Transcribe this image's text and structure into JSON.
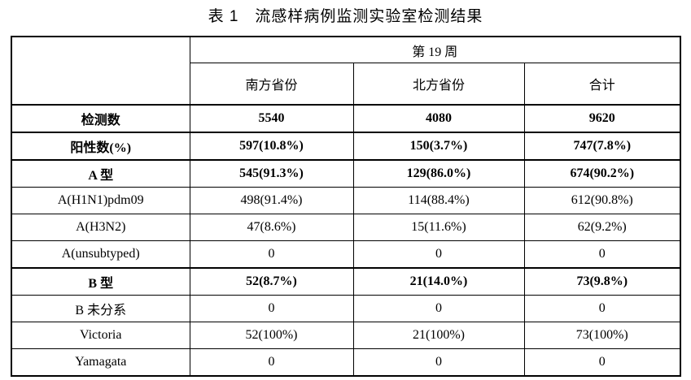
{
  "page": {
    "title": "表 1　流感样病例监测实验室检测结果"
  },
  "table": {
    "header": {
      "corner": "",
      "week": "第 19 周",
      "columns": [
        "南方省份",
        "北方省份",
        "合计"
      ]
    },
    "rows": [
      {
        "label": "检测数",
        "summary": true,
        "values": [
          "5540",
          "4080",
          "9620"
        ]
      },
      {
        "label": "阳性数(%)",
        "summary": true,
        "values": [
          "597(10.8%)",
          "150(3.7%)",
          "747(7.8%)"
        ]
      },
      {
        "label": "A 型",
        "summary": true,
        "values": [
          "545(91.3%)",
          "129(86.0%)",
          "674(90.2%)"
        ]
      },
      {
        "label": "A(H1N1)pdm09",
        "summary": false,
        "values": [
          "498(91.4%)",
          "114(88.4%)",
          "612(90.8%)"
        ]
      },
      {
        "label": "A(H3N2)",
        "summary": false,
        "values": [
          "47(8.6%)",
          "15(11.6%)",
          "62(9.2%)"
        ]
      },
      {
        "label": "A(unsubtyped)",
        "summary": false,
        "values": [
          "0",
          "0",
          "0"
        ]
      },
      {
        "label": "B 型",
        "summary": true,
        "values": [
          "52(8.7%)",
          "21(14.0%)",
          "73(9.8%)"
        ]
      },
      {
        "label": "B 未分系",
        "summary": false,
        "values": [
          "0",
          "0",
          "0"
        ]
      },
      {
        "label": "Victoria",
        "summary": false,
        "values": [
          "52(100%)",
          "21(100%)",
          "73(100%)"
        ]
      },
      {
        "label": "Yamagata",
        "summary": false,
        "values": [
          "0",
          "0",
          "0"
        ]
      }
    ]
  }
}
